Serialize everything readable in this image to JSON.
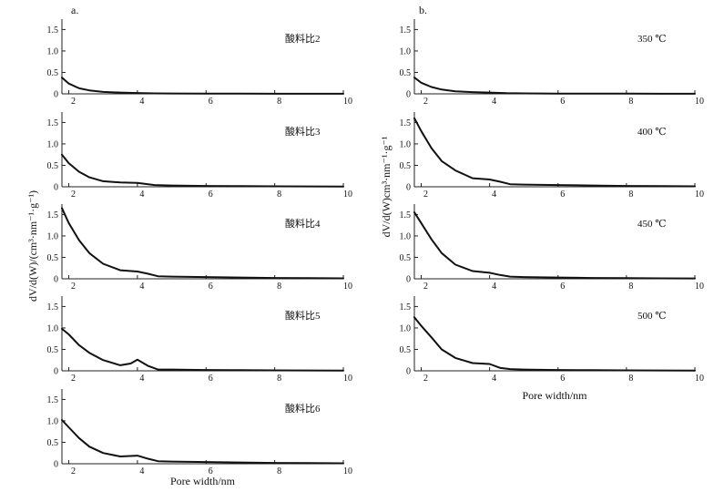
{
  "chart_data": {
    "type": "line",
    "x_range": [
      1.8,
      10
    ],
    "y_range": [
      0,
      1.7
    ],
    "x_ticks": [
      "2",
      "4",
      "6",
      "8",
      "10"
    ],
    "y_ticks": [
      "0",
      "0.5",
      "1.0",
      "1.5"
    ],
    "panels": [
      {
        "id": "a",
        "label": "a.",
        "xlabel": "Pore width/nm",
        "ylabel": "dV/d(W)/(cm³·nm⁻¹·g⁻¹)",
        "series": [
          {
            "name": "酸料比2",
            "x": [
              1.8,
              2.0,
              2.3,
              2.6,
              3.0,
              3.5,
              4.0,
              4.5,
              5.0,
              6.0,
              7.0,
              8.0,
              9.0,
              10.0
            ],
            "y": [
              0.38,
              0.24,
              0.13,
              0.08,
              0.045,
              0.03,
              0.02,
              0.01,
              0.008,
              0.005,
              0.004,
              0.003,
              0.002,
              0.002
            ]
          },
          {
            "name": "酸料比3",
            "x": [
              1.8,
              2.0,
              2.3,
              2.6,
              3.0,
              3.5,
              4.0,
              4.5,
              5.0,
              6.0,
              7.0,
              8.0,
              9.0,
              10.0
            ],
            "y": [
              0.75,
              0.55,
              0.35,
              0.22,
              0.13,
              0.1,
              0.09,
              0.04,
              0.03,
              0.02,
              0.015,
              0.01,
              0.008,
              0.005
            ]
          },
          {
            "name": "酸料比4",
            "x": [
              1.8,
              2.0,
              2.3,
              2.6,
              3.0,
              3.5,
              4.0,
              4.3,
              4.6,
              5.0,
              6.0,
              7.0,
              8.0,
              9.0,
              10.0
            ],
            "y": [
              1.65,
              1.3,
              0.9,
              0.6,
              0.35,
              0.2,
              0.17,
              0.12,
              0.06,
              0.05,
              0.04,
              0.03,
              0.02,
              0.015,
              0.01
            ]
          },
          {
            "name": "酸料比5",
            "x": [
              1.8,
              2.0,
              2.3,
              2.6,
              3.0,
              3.5,
              3.8,
              4.0,
              4.3,
              4.6,
              5.0,
              6.0,
              7.0,
              8.0,
              9.0,
              10.0
            ],
            "y": [
              0.98,
              0.85,
              0.6,
              0.42,
              0.25,
              0.13,
              0.17,
              0.26,
              0.12,
              0.03,
              0.03,
              0.02,
              0.015,
              0.01,
              0.008,
              0.005
            ]
          },
          {
            "name": "酸料比6",
            "x": [
              1.8,
              2.0,
              2.3,
              2.6,
              3.0,
              3.5,
              4.0,
              4.3,
              4.6,
              5.0,
              6.0,
              7.0,
              8.0,
              9.0,
              10.0
            ],
            "y": [
              1.02,
              0.85,
              0.6,
              0.4,
              0.25,
              0.17,
              0.19,
              0.12,
              0.06,
              0.05,
              0.04,
              0.03,
              0.02,
              0.015,
              0.01
            ]
          }
        ]
      },
      {
        "id": "b",
        "label": "b.",
        "xlabel": "Pore width/nm",
        "ylabel": "dV/d(W)cm³·nm⁻¹·g⁻¹",
        "series": [
          {
            "name": "350 ℃",
            "x": [
              1.8,
              2.0,
              2.3,
              2.6,
              3.0,
              3.5,
              4.0,
              4.5,
              5.0,
              6.0,
              7.0,
              8.0,
              9.0,
              10.0
            ],
            "y": [
              0.38,
              0.26,
              0.16,
              0.1,
              0.06,
              0.04,
              0.03,
              0.015,
              0.01,
              0.006,
              0.005,
              0.004,
              0.003,
              0.002
            ]
          },
          {
            "name": "400 ℃",
            "x": [
              1.8,
              2.0,
              2.3,
              2.6,
              3.0,
              3.5,
              4.0,
              4.3,
              4.6,
              5.0,
              6.0,
              7.0,
              8.0,
              9.0,
              10.0
            ],
            "y": [
              1.6,
              1.3,
              0.9,
              0.6,
              0.38,
              0.2,
              0.17,
              0.12,
              0.06,
              0.05,
              0.04,
              0.03,
              0.02,
              0.015,
              0.01
            ]
          },
          {
            "name": "450 ℃",
            "x": [
              1.8,
              2.0,
              2.3,
              2.6,
              3.0,
              3.5,
              4.0,
              4.3,
              4.6,
              5.0,
              6.0,
              7.0,
              8.0,
              9.0,
              10.0
            ],
            "y": [
              1.55,
              1.3,
              0.92,
              0.6,
              0.33,
              0.18,
              0.14,
              0.09,
              0.05,
              0.04,
              0.03,
              0.02,
              0.015,
              0.01,
              0.008
            ]
          },
          {
            "name": "500 ℃",
            "x": [
              1.8,
              2.0,
              2.3,
              2.6,
              3.0,
              3.5,
              4.0,
              4.3,
              4.6,
              5.0,
              6.0,
              7.0,
              8.0,
              9.0,
              10.0
            ],
            "y": [
              1.25,
              1.05,
              0.78,
              0.5,
              0.3,
              0.18,
              0.16,
              0.07,
              0.04,
              0.03,
              0.02,
              0.015,
              0.01,
              0.008,
              0.005
            ]
          }
        ]
      }
    ]
  }
}
